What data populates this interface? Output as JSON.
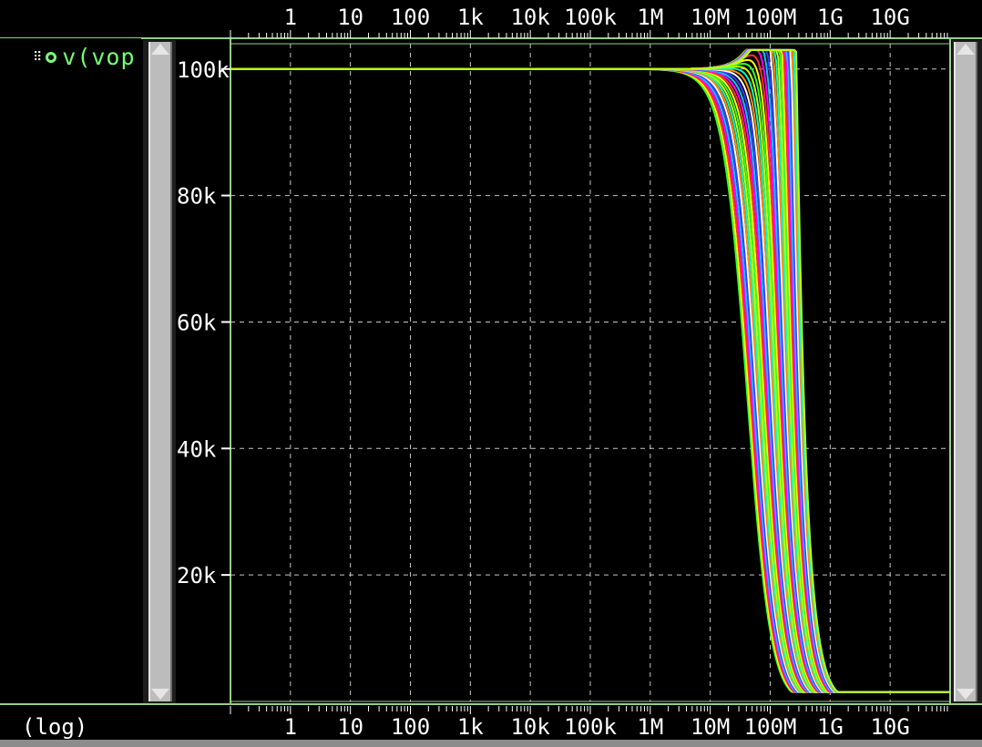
{
  "x_axis": {
    "scale_label": "(log)",
    "tick_labels": [
      "1",
      "10",
      "100",
      "1k",
      "10k",
      "100k",
      "1M",
      "10M",
      "100M",
      "1G",
      "10G"
    ]
  },
  "y_axis": {
    "tick_labels": [
      "100k",
      "80k",
      "60k",
      "40k",
      "20k"
    ]
  },
  "signal_list": {
    "grip_glyph": "⠿",
    "signal_name": "v(vop"
  },
  "colors": {
    "background": "#000000",
    "frame": "#9acd8a",
    "grid": "#c8c8c8",
    "signal_label": "#72ff72"
  },
  "chart_data": {
    "type": "line",
    "title": "",
    "xlabel": "(log)",
    "ylabel": "",
    "x_scale": "log",
    "xlim": [
      0.1,
      100000000000
    ],
    "ylim": [
      0,
      104000
    ],
    "grid": true,
    "legend": "top-left",
    "series_family": {
      "name": "v(vop",
      "count": 40,
      "dc_gain": 100000,
      "pole_frequency_range": [
        40000000,
        230000000
      ],
      "peak_max": 103000,
      "floor": 1500,
      "colors": [
        "#33ff33",
        "#ffff00",
        "#ff3030",
        "#ff00ff",
        "#00c8ff",
        "#3c3cff",
        "#ffffff",
        "#ff8c00",
        "#00ffc8",
        "#c8ff00"
      ]
    }
  }
}
